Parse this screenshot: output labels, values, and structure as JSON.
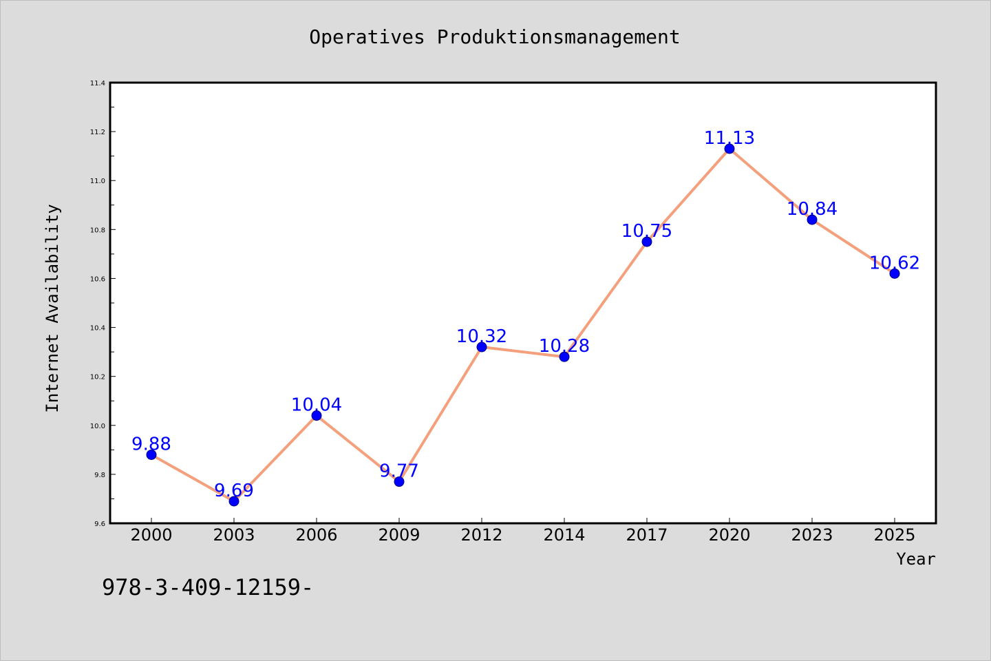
{
  "chart_data": {
    "type": "line",
    "title": "Operatives Produktionsmanagement",
    "xlabel": "Year",
    "ylabel": "Internet Availability",
    "categories": [
      "2000",
      "2003",
      "2006",
      "2009",
      "2012",
      "2014",
      "2017",
      "2020",
      "2023",
      "2025"
    ],
    "series": [
      {
        "values": [
          9.88,
          9.69,
          10.04,
          9.77,
          10.32,
          10.28,
          10.75,
          11.13,
          10.84,
          10.62
        ],
        "data_labels": [
          "9.88",
          "9.69",
          "10.04",
          "9.77",
          "10.32",
          "10.28",
          "10.75",
          "11.13",
          "10.84",
          "10.62"
        ],
        "line_color": "#f4a07c",
        "marker_color": "#0000ff",
        "label_color": "#0000ff"
      }
    ],
    "ylim": [
      9.6,
      11.4
    ],
    "yticks": [
      "9.6",
      "9.8",
      "10.0",
      "10.2",
      "10.4",
      "10.6",
      "10.8",
      "11.0",
      "11.2",
      "11.4"
    ],
    "grid": false,
    "legend": "none"
  },
  "footer": {
    "text": "978-3-409-12159-"
  },
  "colors": {
    "background": "#dcdcdc",
    "plot_background": "#ffffff"
  }
}
